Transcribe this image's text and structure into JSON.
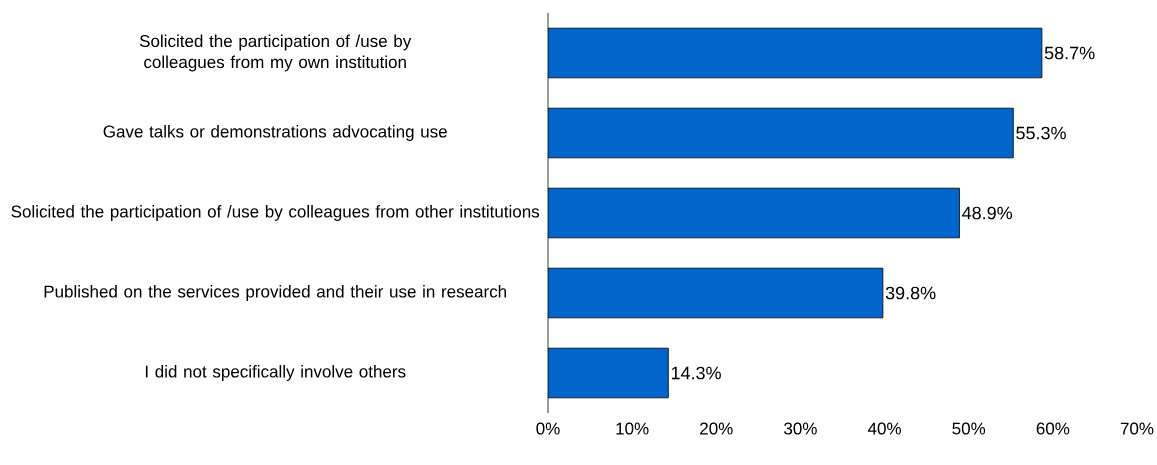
{
  "chart_data": {
    "type": "bar",
    "orientation": "horizontal",
    "categories": [
      "Solicited the participation of /use by colleagues from my own institution",
      "Gave talks or demonstrations advocating use",
      "Solicited the participation of /use by colleagues from other institutions",
      "Published on the services provided and their use in research",
      "I did not specifically involve others"
    ],
    "values": [
      58.7,
      55.3,
      48.9,
      39.8,
      14.3
    ],
    "value_labels": [
      "58.7%",
      "55.3%",
      "48.9%",
      "39.8%",
      "14.3%"
    ],
    "color": "#0066cc",
    "xlim": [
      0,
      70
    ],
    "xticks": [
      {
        "value": 0,
        "label": "0%"
      },
      {
        "value": 10,
        "label": "10%"
      },
      {
        "value": 20,
        "label": "20%"
      },
      {
        "value": 30,
        "label": "30%"
      },
      {
        "value": 40,
        "label": "40%"
      },
      {
        "value": 50,
        "label": "50%"
      },
      {
        "value": 60,
        "label": "60%"
      },
      {
        "value": 70,
        "label": "70%"
      }
    ],
    "grid": false
  }
}
